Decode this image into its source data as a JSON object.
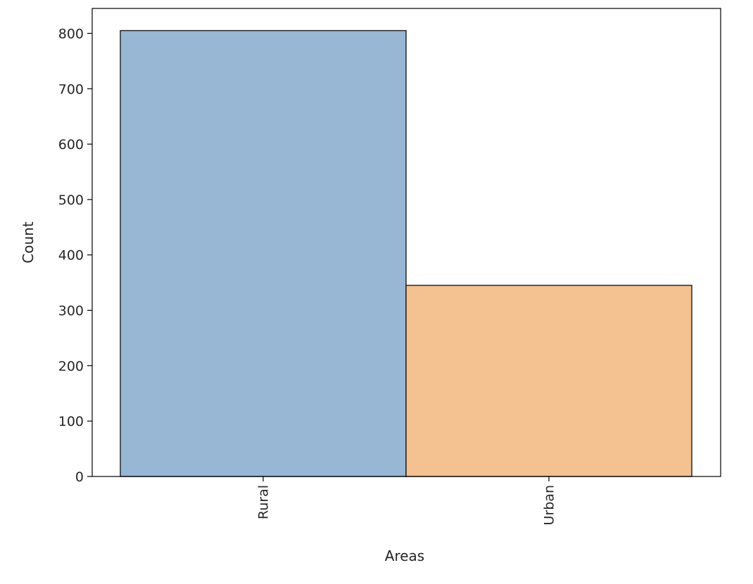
{
  "chart_data": {
    "type": "bar",
    "categories": [
      "Rural",
      "Urban"
    ],
    "values": [
      805,
      345
    ],
    "colors": [
      "#97b7d5",
      "#f4c190"
    ],
    "edge_color": "#1a1a1a",
    "title": "",
    "xlabel": "Areas",
    "ylabel": "Count",
    "ylim": [
      0,
      845
    ],
    "yticks": [
      0,
      100,
      200,
      300,
      400,
      500,
      600,
      700,
      800
    ],
    "xtick_rotation": "vertical",
    "grid": false,
    "legend": "none"
  }
}
